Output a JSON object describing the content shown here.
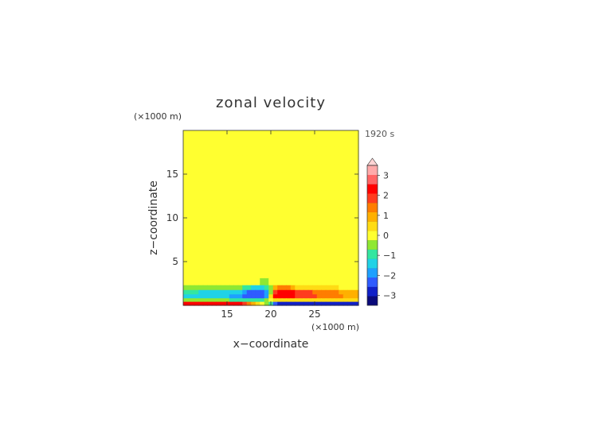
{
  "chart_data": {
    "type": "heatmap",
    "title": "zonal velocity",
    "time_label": "1920 s",
    "xlabel": "x−coordinate",
    "ylabel": "z−coordinate",
    "x_unit": "(×1000 m)",
    "y_unit": "(×1000 m)",
    "xlim": [
      10,
      30
    ],
    "ylim": [
      0,
      20
    ],
    "x_ticks": [
      {
        "value": 15,
        "label": "15"
      },
      {
        "value": 20,
        "label": "20"
      },
      {
        "value": 25,
        "label": "25"
      }
    ],
    "y_ticks": [
      {
        "value": 5,
        "label": "5"
      },
      {
        "value": 10,
        "label": "10"
      },
      {
        "value": 15,
        "label": "15"
      }
    ],
    "colorbar": {
      "min": -3.5,
      "max": 3.5,
      "step": 0.5,
      "extend": "max",
      "ticks": [
        {
          "value": 3,
          "label": "3"
        },
        {
          "value": 2,
          "label": "2"
        },
        {
          "value": 1,
          "label": "1"
        },
        {
          "value": 0,
          "label": "0"
        },
        {
          "value": -1,
          "label": "−1"
        },
        {
          "value": -2,
          "label": "−2"
        },
        {
          "value": -3,
          "label": "−3"
        }
      ],
      "colors": [
        "#0a0a7a",
        "#1020c8",
        "#2f5bff",
        "#1ea0ff",
        "#20d2e6",
        "#34e6a0",
        "#8fe832",
        "#ffff30",
        "#ffdc14",
        "#ffb000",
        "#ff7d00",
        "#ff3c1e",
        "#ff0000",
        "#ff6464",
        "#ffaaaa"
      ],
      "over_color": "#ffd4d4"
    },
    "z_grid": [
      {
        "z": 19.6,
        "row": [
          0,
          0,
          0,
          0,
          0,
          0,
          0,
          0,
          0,
          0,
          0,
          0,
          0,
          0,
          0,
          0,
          0,
          0,
          0,
          0,
          0,
          0,
          0,
          0,
          0,
          0,
          0,
          0,
          0,
          0,
          0,
          0,
          0,
          0,
          0,
          0,
          0,
          0,
          0,
          0,
          0
        ]
      },
      {
        "z": 18.6,
        "row": [
          0,
          0,
          0,
          0,
          0,
          0,
          0,
          0,
          0,
          0,
          0,
          0,
          0,
          0,
          0,
          0,
          0,
          0,
          0,
          0,
          0,
          0,
          0,
          0,
          0,
          0,
          0,
          0,
          0,
          0,
          0,
          0,
          0,
          0,
          0,
          0,
          0,
          0,
          0,
          0,
          0
        ]
      },
      {
        "z": 17.6,
        "row": [
          0.2,
          0.2,
          0.2,
          0.2,
          0.2,
          0.2,
          0.2,
          0.2,
          0.2,
          0.2,
          0.2,
          0.2,
          0.2,
          0.2,
          0.2,
          0.2,
          0.2,
          0.2,
          0.2,
          0.2,
          0.2,
          0,
          0,
          0,
          0,
          0,
          0,
          0,
          0,
          0,
          0,
          0,
          0,
          0,
          0,
          0,
          0,
          0,
          0,
          0,
          0
        ]
      },
      {
        "z": 16.6,
        "row": [
          0.2,
          0.2,
          0.2,
          0.2,
          0.2,
          0.2,
          0.2,
          0.2,
          0.2,
          0.2,
          0.2,
          0.2,
          0.2,
          0.2,
          0.2,
          0.2,
          0.2,
          0.2,
          0.2,
          0.2,
          0.2,
          0,
          0,
          0,
          0,
          0,
          0,
          0,
          0,
          0,
          0,
          0,
          0,
          0,
          0,
          0,
          0,
          0,
          0,
          0,
          0
        ]
      },
      {
        "z": 15.6,
        "row": [
          0.2,
          0.2,
          0.2,
          0.2,
          0.2,
          0.2,
          0.2,
          0.2,
          0.2,
          0.2,
          0.2,
          0.2,
          0.2,
          0.2,
          0.2,
          0.2,
          0.2,
          0.2,
          0.2,
          0.2,
          0.2,
          0,
          0,
          0,
          0,
          0,
          0,
          0,
          0,
          0,
          0,
          0,
          0,
          0,
          0,
          0,
          0,
          0,
          0,
          0,
          0
        ]
      },
      {
        "z": 14.6,
        "row": [
          0.2,
          0.2,
          0.2,
          0.2,
          0.2,
          0.2,
          0.2,
          0.2,
          0.2,
          0.2,
          0.2,
          0.2,
          0.2,
          0.2,
          0.2,
          0.2,
          0.2,
          0.2,
          0.2,
          0.2,
          0.2,
          0,
          0,
          0,
          0,
          0,
          0,
          0,
          0,
          0,
          0,
          0,
          0,
          0,
          0,
          0,
          0,
          0,
          0,
          0,
          0
        ]
      },
      {
        "z": 13.6,
        "row": [
          0.2,
          0.2,
          0.2,
          0.2,
          0.2,
          0.2,
          0.2,
          0.2,
          0.2,
          0.2,
          0.2,
          0.2,
          0.2,
          0.2,
          0.2,
          0.2,
          0.2,
          0.2,
          0.2,
          0.2,
          0.2,
          0,
          0,
          0,
          0,
          0,
          0,
          0,
          0,
          0,
          0,
          0,
          0,
          0,
          0,
          0,
          0,
          0,
          0,
          0,
          0
        ]
      },
      {
        "z": 12.6,
        "row": [
          0.2,
          0.2,
          0.2,
          0.2,
          0,
          0,
          0,
          0,
          0,
          0,
          0,
          0,
          0,
          0,
          0,
          0,
          0,
          0,
          0.2,
          0.2,
          0.2,
          0.2,
          0.2,
          0.2,
          0.2,
          0.2,
          0.2,
          0.2,
          0.2,
          0.2,
          0.2,
          0.2,
          0.2,
          0.2,
          0.2,
          0.2,
          0.2,
          0.2,
          0.2,
          0.2,
          0.2
        ]
      },
      {
        "z": 11.6,
        "row": [
          0,
          0,
          0,
          0,
          0,
          0,
          0,
          0,
          0,
          0,
          0,
          0,
          0,
          0,
          0,
          0,
          0,
          0,
          0,
          0,
          0,
          0.2,
          0.2,
          0.2,
          0.2,
          0.2,
          0.2,
          0.2,
          0.2,
          0.2,
          0.2,
          0.2,
          0.2,
          0.2,
          0.2,
          0.2,
          0.2,
          0.2,
          0.2,
          0.2,
          0.2
        ]
      },
      {
        "z": 10.6,
        "row": [
          0,
          0,
          0,
          0,
          0,
          0,
          0,
          0,
          0,
          0,
          0,
          0,
          0,
          0,
          0,
          0,
          0,
          0,
          0,
          0,
          0,
          0.2,
          0.2,
          0.2,
          0.2,
          0.2,
          0.2,
          0.2,
          0.2,
          0.2,
          0.2,
          0.2,
          0.2,
          0.2,
          0.2,
          0.2,
          0.2,
          0.2,
          0.2,
          0.2,
          0.2
        ]
      },
      {
        "z": 9.6,
        "row": [
          0,
          0,
          0,
          0,
          0,
          0,
          0,
          0,
          0,
          0,
          0,
          0,
          0,
          0,
          0,
          0,
          0,
          0,
          0,
          0,
          0,
          0.2,
          0.2,
          0.2,
          0.2,
          0.2,
          0.2,
          0.2,
          0.2,
          0.2,
          0.2,
          0.2,
          0.2,
          0.2,
          0.2,
          0.2,
          0.2,
          0.2,
          0.2,
          0.2,
          0.2
        ]
      },
      {
        "z": 8.6,
        "row": [
          0,
          0,
          0,
          0,
          0,
          0,
          0,
          0,
          0,
          0,
          0,
          0,
          0,
          0,
          0,
          0,
          0,
          0,
          0,
          0,
          0,
          0.2,
          0.2,
          0.2,
          0.2,
          0.2,
          0.2,
          0.2,
          0.2,
          0.2,
          0.2,
          0.2,
          0.2,
          0.2,
          0.2,
          0.2,
          0.2,
          0.2,
          0.2,
          0.2,
          0.2
        ]
      },
      {
        "z": 7.6,
        "row": [
          0,
          0,
          0,
          0,
          0,
          0,
          0,
          0,
          0,
          0,
          0,
          0,
          0,
          0,
          0,
          0,
          0,
          0,
          0,
          0,
          0,
          0.2,
          0.2,
          0.2,
          0.2,
          0.2,
          0.2,
          0.2,
          0.2,
          0.2,
          0.2,
          0.2,
          0.2,
          0.2,
          0.2,
          0.2,
          0.2,
          0.2,
          0.2,
          0.2,
          0.2
        ]
      },
      {
        "z": 6.6,
        "row": [
          0,
          0,
          0,
          0,
          0,
          0,
          0,
          0,
          0,
          0,
          0,
          0,
          0,
          0,
          0,
          0,
          0,
          0,
          0,
          0,
          0,
          0.2,
          0.2,
          0.2,
          0.2,
          0.2,
          0.2,
          0.2,
          0.2,
          0.2,
          0.2,
          0.2,
          0.2,
          0.2,
          0.2,
          0.2,
          0.2,
          0.2,
          0.2,
          0.2,
          0.2
        ]
      },
      {
        "z": 5.6,
        "row": [
          0,
          0,
          0,
          0,
          0,
          0,
          0,
          0,
          0.2,
          0.2,
          0.2,
          0.2,
          0.2,
          0.2,
          0.2,
          0.2,
          0.2,
          0.2,
          0.2,
          0.2,
          0,
          0,
          0,
          0,
          0,
          0,
          0,
          0,
          0,
          0,
          0,
          0,
          0,
          0,
          0,
          0,
          0,
          0,
          0,
          0,
          0
        ]
      },
      {
        "z": 4.6,
        "row": [
          0,
          0,
          0,
          0,
          0.2,
          0.2,
          0.2,
          0.2,
          0.2,
          0.2,
          0.2,
          0.2,
          0.2,
          0.2,
          0.2,
          0.2,
          0.2,
          0.2,
          0.2,
          0.2,
          0,
          0,
          0,
          0,
          0,
          0,
          0,
          0,
          0,
          0,
          0,
          0,
          0,
          0,
          0,
          0,
          0,
          0,
          0.2,
          0.2,
          0.2
        ]
      },
      {
        "z": 3.6,
        "row": [
          0.2,
          0.2,
          0.2,
          0.2,
          0.2,
          0.2,
          0.2,
          0.2,
          0.2,
          0.2,
          0.2,
          0.2,
          0.2,
          0.2,
          0.2,
          0.2,
          0.2,
          0.2,
          0.2,
          0.2,
          0,
          0,
          0,
          0,
          0,
          0,
          0,
          0,
          0,
          0,
          0,
          0,
          0,
          0,
          0,
          0,
          0,
          0,
          0,
          0,
          0.2
        ]
      },
      {
        "z": 2.6,
        "row": [
          0,
          0,
          0,
          0,
          0,
          0,
          0,
          0,
          0,
          0,
          0,
          0,
          0,
          0,
          0,
          0,
          0,
          0,
          -0.5,
          -0.5,
          0,
          0.2,
          0.4,
          0.4,
          0.2,
          0.2,
          0.2,
          0.2,
          0.2,
          0.2,
          0.2,
          0.2,
          0.2,
          0.2,
          0.2,
          0.2,
          0.2,
          0.2,
          0.2,
          0.2,
          0.2
        ]
      },
      {
        "z": 2.0,
        "row": [
          -0.5,
          -0.5,
          -0.5,
          -0.5,
          -0.5,
          -0.5,
          -0.5,
          -0.5,
          -0.5,
          -0.5,
          -0.5,
          -0.5,
          -0.5,
          -0.5,
          -1.0,
          -1.0,
          -1.5,
          -1.5,
          -1.5,
          -1.0,
          -0.5,
          1.0,
          1.5,
          1.5,
          1.5,
          1.0,
          0.8,
          0.8,
          0.8,
          0.6,
          0.6,
          0.6,
          0.6,
          0.6,
          0.6,
          0.6,
          0.4,
          0.4,
          0.4,
          0.4,
          0.4
        ]
      },
      {
        "z": 1.5,
        "row": [
          -1.0,
          -1.0,
          -1.0,
          -1.0,
          -1.2,
          -1.2,
          -1.2,
          -1.2,
          -1.2,
          -1.2,
          -1.5,
          -1.5,
          -1.5,
          -1.5,
          -2.0,
          -2.5,
          -2.5,
          -2.5,
          -2.5,
          -2.0,
          -0.5,
          2.0,
          2.5,
          2.5,
          2.5,
          2.5,
          2.0,
          2.0,
          2.0,
          2.0,
          1.5,
          1.5,
          1.5,
          1.5,
          1.5,
          1.5,
          1.0,
          1.0,
          1.0,
          1.0,
          1.0
        ]
      },
      {
        "z": 1.0,
        "row": [
          -1.5,
          -1.5,
          -1.5,
          -1.5,
          -1.5,
          -1.5,
          -1.5,
          -1.5,
          -1.5,
          -1.5,
          -1.5,
          -2.0,
          -2.0,
          -2.0,
          -2.5,
          -2.5,
          -2.5,
          -2.5,
          -2.5,
          -2.0,
          0.5,
          2.5,
          2.5,
          2.5,
          2.5,
          2.5,
          2.0,
          2.0,
          2.0,
          2.0,
          2.0,
          1.5,
          1.5,
          1.5,
          1.5,
          1.5,
          1.5,
          1.0,
          1.0,
          1.0,
          1.0
        ]
      },
      {
        "z": 0.6,
        "row": [
          -0.5,
          -0.5,
          -0.5,
          -0.5,
          -0.5,
          -0.5,
          -0.5,
          -0.5,
          -0.5,
          -0.5,
          -0.5,
          -1.0,
          -1.0,
          -1.0,
          -1.0,
          -1.0,
          -1.0,
          -1.0,
          -1.0,
          -0.5,
          0,
          0.5,
          0.5,
          0.5,
          0.5,
          0.5,
          0.5,
          0.5,
          0.5,
          0.5,
          0.5,
          0.5,
          0.5,
          0.5,
          0.5,
          0.5,
          0.5,
          0.5,
          0.5,
          0.5,
          0.5
        ]
      },
      {
        "z": 0.2,
        "row": [
          2.5,
          2.5,
          2.5,
          2.5,
          2.5,
          2.5,
          2.5,
          2.5,
          2.5,
          2.5,
          2.5,
          2.5,
          2.5,
          2.5,
          2.0,
          1.5,
          1.0,
          0.5,
          0,
          -0.5,
          -1.0,
          -2.5,
          -3.0,
          -3.0,
          -3.0,
          -3.0,
          -3.0,
          -3.0,
          -3.0,
          -3.0,
          -3.0,
          -3.0,
          -3.0,
          -3.0,
          -3.0,
          -3.0,
          -3.0,
          -3.0,
          -3.0,
          -3.0,
          -3.0
        ]
      }
    ]
  }
}
